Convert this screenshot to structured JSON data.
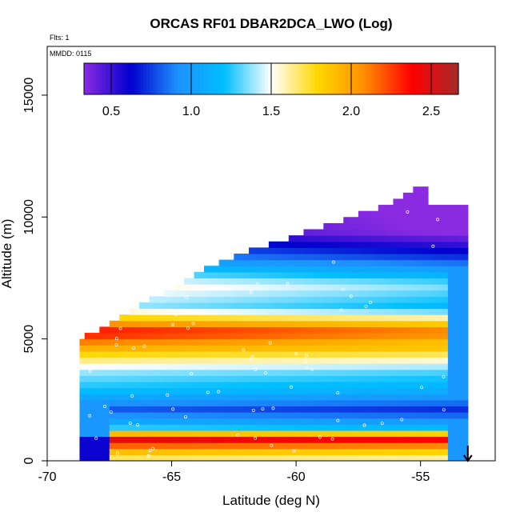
{
  "chart_data": {
    "type": "heatmap",
    "title": "ORCAS RF01 DBAR2DCA_LWO (Log)",
    "note_flights": "Flts: 1",
    "note_date": "MMDD: 0115",
    "xlabel": "Latitude (deg N)",
    "ylabel": "Altitude (m)",
    "xlim": [
      -70,
      -52
    ],
    "ylim": [
      0,
      17000
    ],
    "x_ticks": [
      -70,
      -65,
      -60,
      -55
    ],
    "y_ticks": [
      0,
      5000,
      10000,
      15000
    ],
    "colorbar": {
      "range": [
        0.33,
        2.67
      ],
      "ticks": [
        0.5,
        1.0,
        1.5,
        2.0,
        2.5
      ],
      "tick_labels": [
        "0.5",
        "1.0",
        "1.5",
        "2.0",
        "2.5"
      ],
      "colors": [
        "#8a2be2",
        "#0000cd",
        "#1e90ff",
        "#00bfff",
        "#ffffff",
        "#ffd700",
        "#ff8c00",
        "#ff0000",
        "#a52a2a"
      ]
    },
    "field_extent": {
      "lat_min": -68.7,
      "lat_max": -53.1,
      "alt_min": 0,
      "alt_max": 11300
    },
    "bands": [
      {
        "alt_center": 11000,
        "value": 0.5
      },
      {
        "alt_center": 9400,
        "value": 0.55
      },
      {
        "alt_center": 8400,
        "value": 0.95
      },
      {
        "alt_center": 7200,
        "value": 1.6
      },
      {
        "alt_center": 6300,
        "value": 1.4
      },
      {
        "alt_center": 5300,
        "value": 2.4
      },
      {
        "alt_center": 4400,
        "value": 1.8
      },
      {
        "alt_center": 3700,
        "value": 1.4
      },
      {
        "alt_center": 2900,
        "value": 1.2
      },
      {
        "alt_center": 2100,
        "value": 0.8
      },
      {
        "alt_center": 1400,
        "value": 1.2
      },
      {
        "alt_center": 900,
        "value": 2.5
      },
      {
        "alt_center": 200,
        "value": 1.7
      }
    ],
    "arrow_latitude": -53.1,
    "arrow_direction": "down"
  }
}
